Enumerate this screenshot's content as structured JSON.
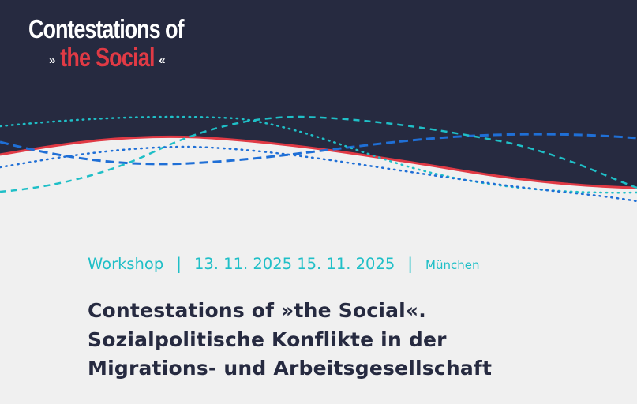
{
  "logo": {
    "line1": "Contestations of",
    "arrows_left": "»",
    "highlight": "the Social",
    "arrows_right": "«"
  },
  "event": {
    "type": "Workshop",
    "separator": "|",
    "dates": "13. 11. 2025 15. 11. 2025",
    "location": "München"
  },
  "title": {
    "line1": "Contestations of »the Social«.",
    "line2": "Sozialpolitische Konflikte in der",
    "line3": "Migrations- und Arbeitsgesellschaft"
  },
  "colors": {
    "dark_navy": "#262a40",
    "accent_red": "#e03a45",
    "accent_teal": "#1fbfc7",
    "accent_blue": "#1f6fd6",
    "background": "#f0f0f0"
  }
}
